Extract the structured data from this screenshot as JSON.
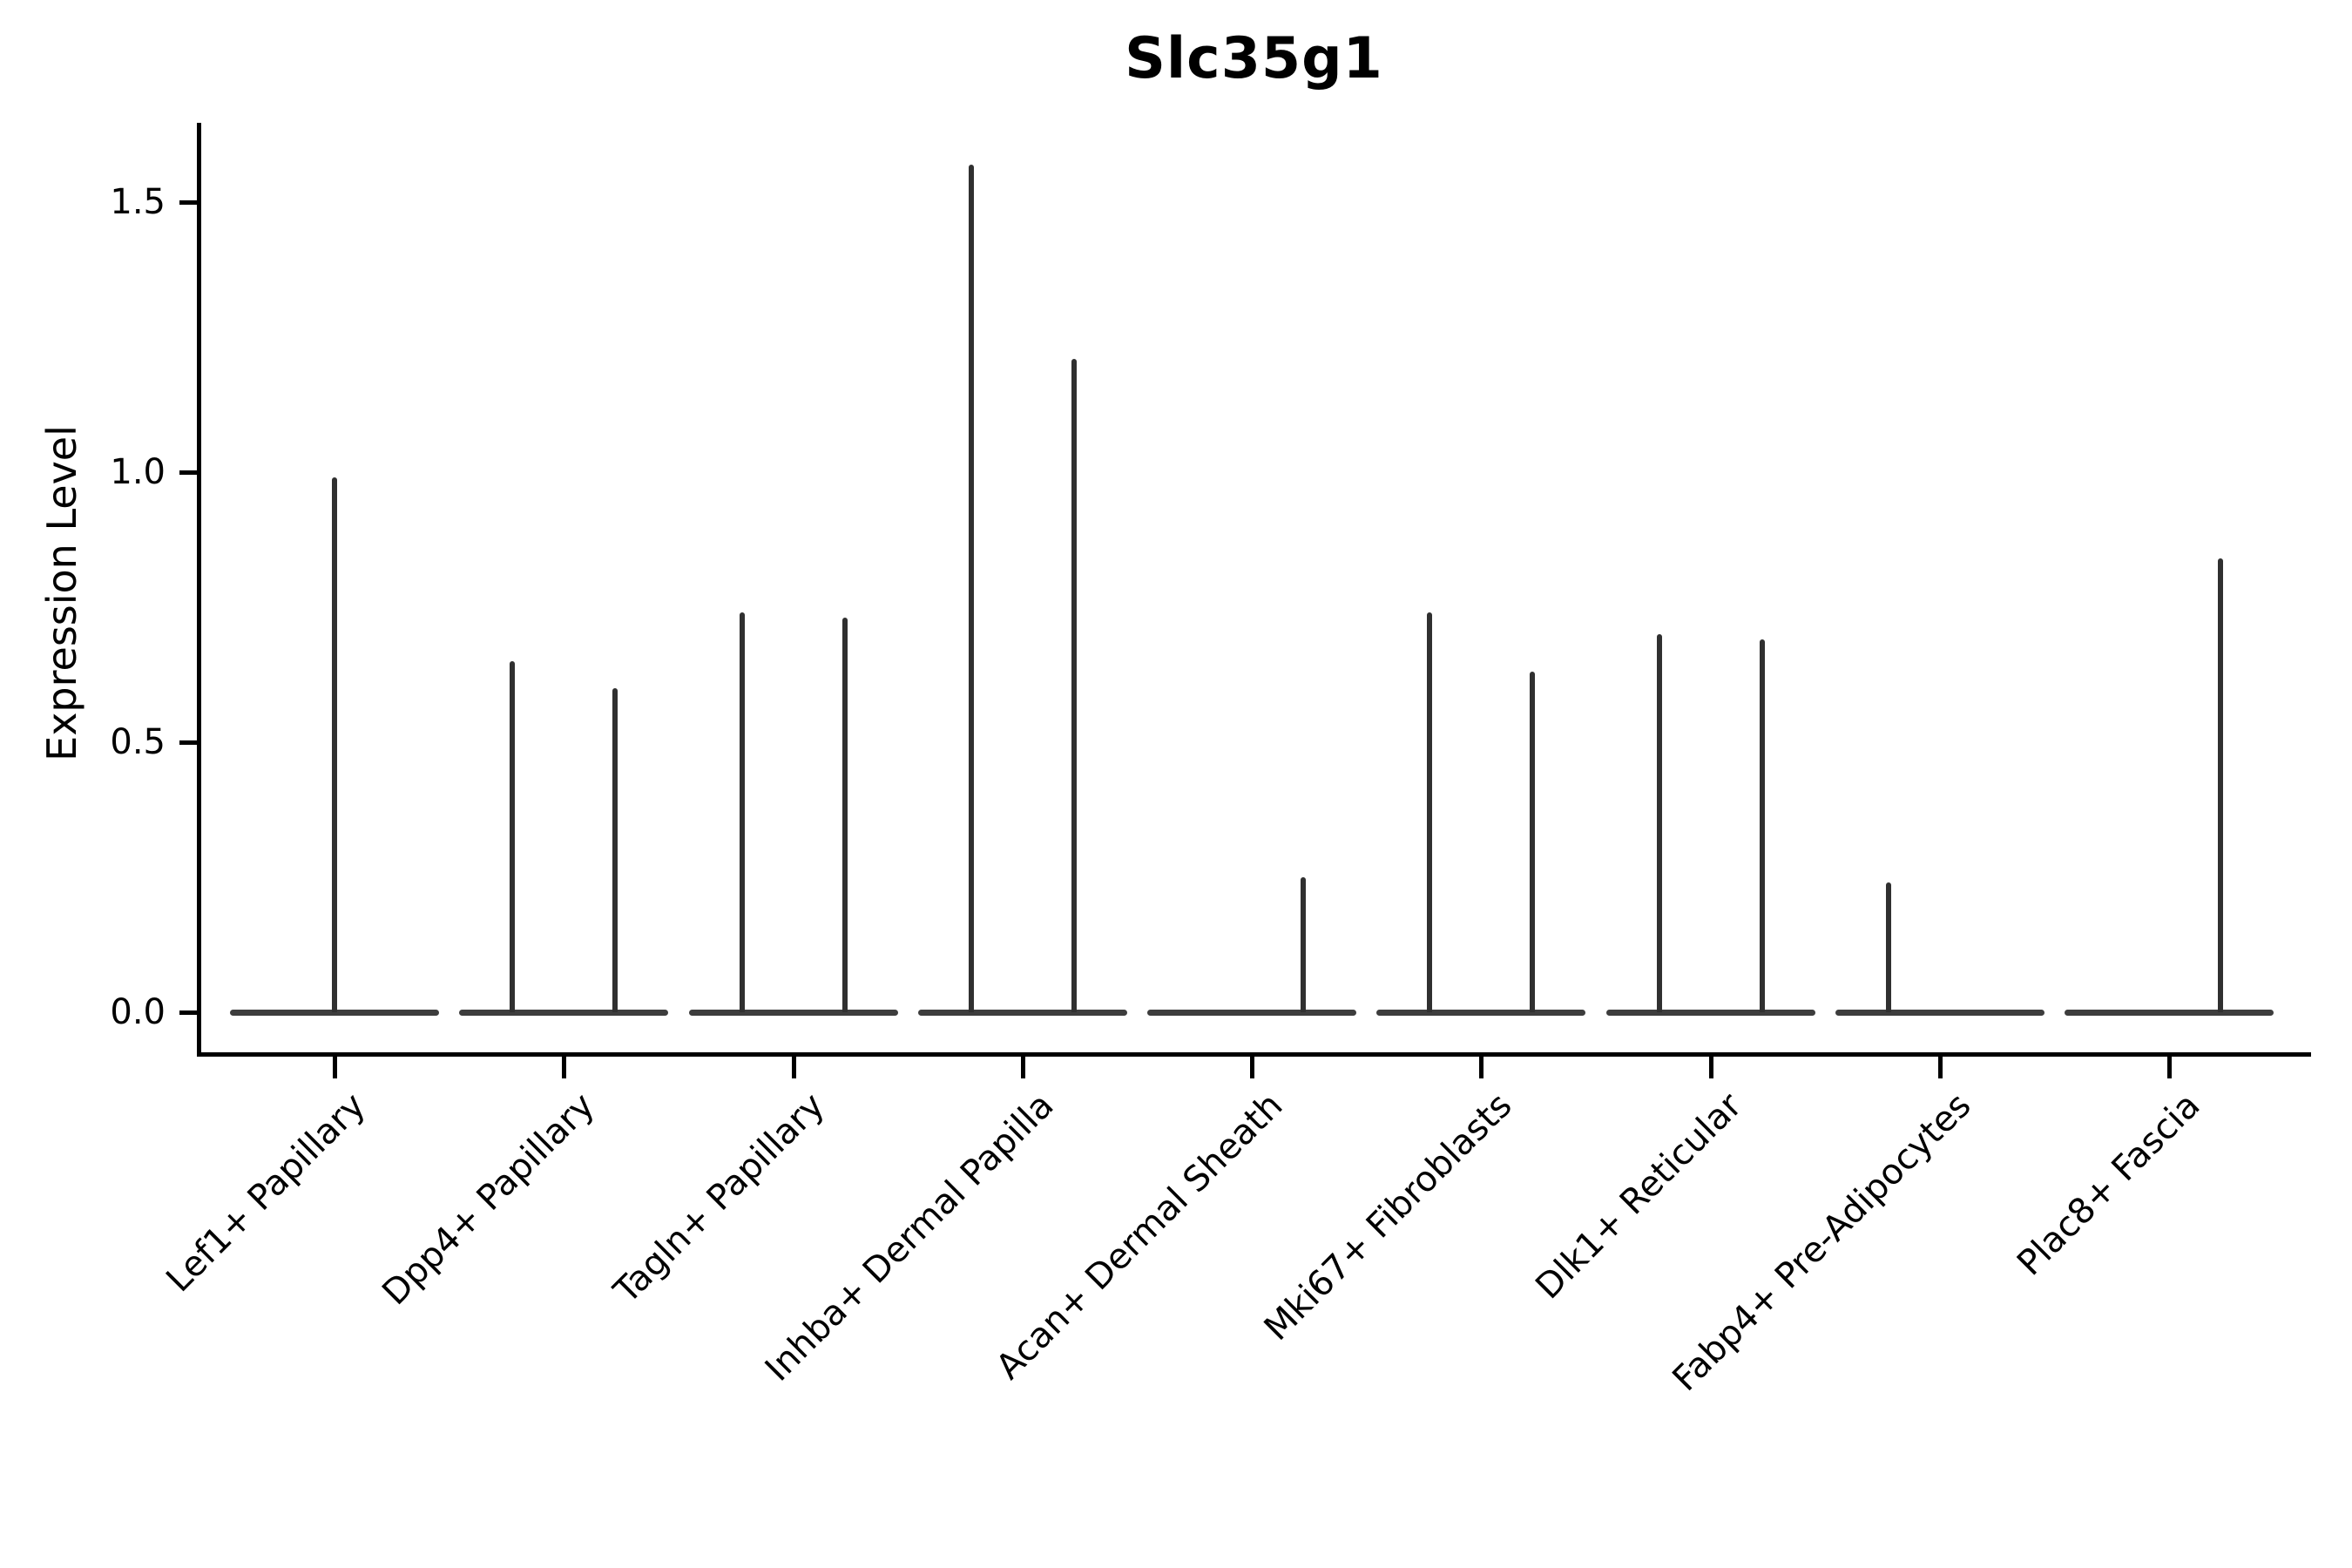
{
  "chart_data": {
    "type": "violin",
    "title": "Slc35g1",
    "ylabel": "Expression Level",
    "xlabel": "",
    "yticks": [
      "0.0",
      "0.5",
      "1.0",
      "1.5"
    ],
    "ylim": [
      -0.08,
      1.65
    ],
    "grid": false,
    "legend": "none",
    "description": "Violin plot of Slc35g1 expression; most cells near 0 so violins collapse to a flat base at 0 with thin spikes reaching each group's maximum expression. Several categories show two dodged violins (left/right).",
    "violin_color": "#303030",
    "baseline_color": "#3d3d3d",
    "axis_color": "#000000",
    "categories": [
      {
        "label": "Lef1+ Papillary",
        "violins": [
          {
            "side": "center",
            "max": 0.99
          }
        ]
      },
      {
        "label": "Dpp4+ Papillary",
        "violins": [
          {
            "side": "left",
            "max": 0.65
          },
          {
            "side": "right",
            "max": 0.6
          }
        ]
      },
      {
        "label": "Tagln+ Papillary",
        "violins": [
          {
            "side": "left",
            "max": 0.74
          },
          {
            "side": "right",
            "max": 0.73
          }
        ]
      },
      {
        "label": "Inhba+ Dermal Papilla",
        "violins": [
          {
            "side": "left",
            "max": 1.57
          },
          {
            "side": "right",
            "max": 1.21
          }
        ]
      },
      {
        "label": "Acan+ Dermal Sheath",
        "violins": [
          {
            "side": "right",
            "max": 0.25
          }
        ]
      },
      {
        "label": "Mki67+ Fibroblasts",
        "violins": [
          {
            "side": "left",
            "max": 0.74
          },
          {
            "side": "right",
            "max": 0.63
          }
        ]
      },
      {
        "label": "Dlk1+ Reticular",
        "violins": [
          {
            "side": "left",
            "max": 0.7
          },
          {
            "side": "right",
            "max": 0.69
          }
        ]
      },
      {
        "label": "Fabp4+ Pre-Adipocytes",
        "violins": [
          {
            "side": "left",
            "max": 0.24
          }
        ]
      },
      {
        "label": "Plac8+ Fascia",
        "violins": [
          {
            "side": "right",
            "max": 0.84
          }
        ]
      }
    ]
  }
}
